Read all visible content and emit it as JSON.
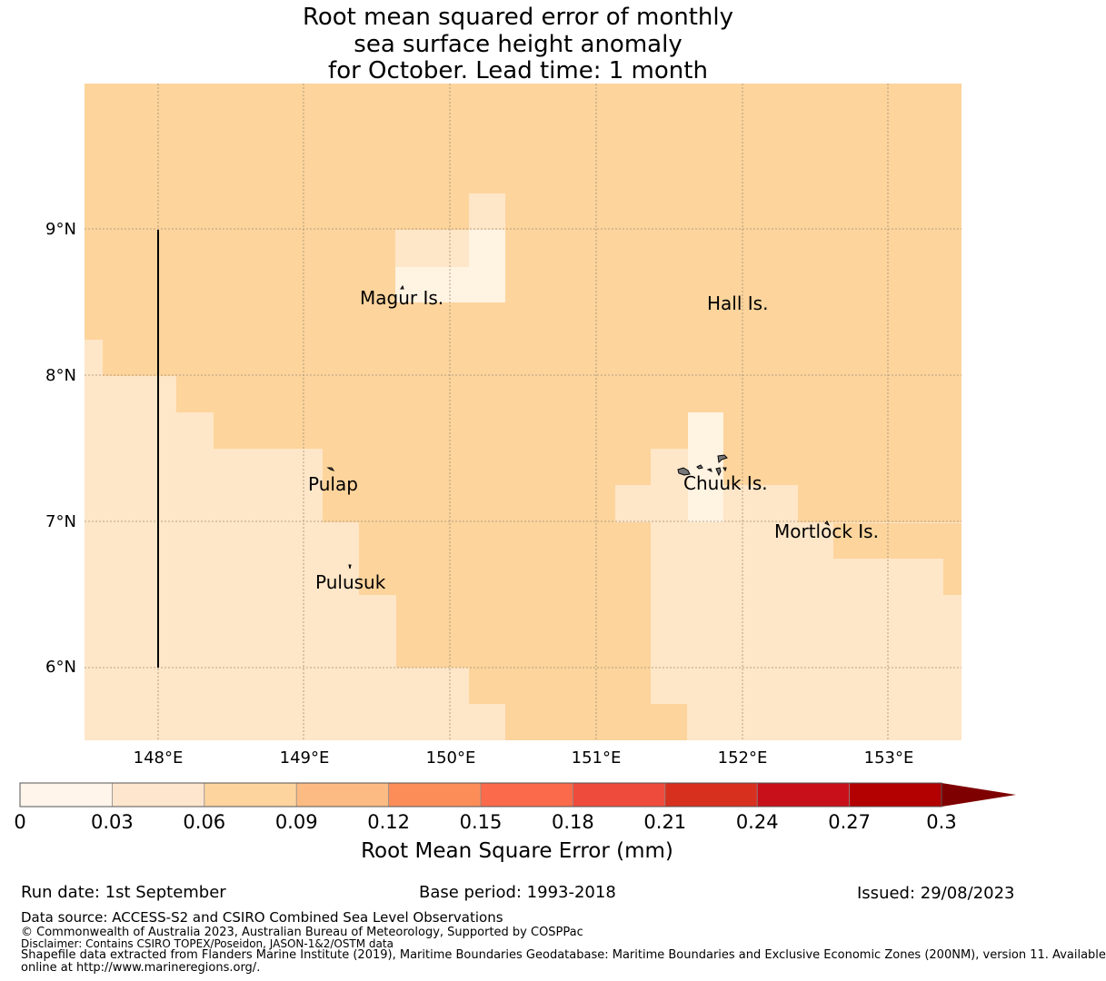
{
  "title": {
    "line1": "Root mean squared error of monthly",
    "line2": "sea surface height anomaly",
    "line3": "for October. Lead time: 1 month"
  },
  "map": {
    "lon_range": [
      147.5,
      153.5
    ],
    "lat_range": [
      5.5,
      10.0
    ],
    "lon_ticks": [
      "148°E",
      "149°E",
      "150°E",
      "151°E",
      "152°E",
      "153°E"
    ],
    "lat_ticks": [
      "9°N",
      "8°N",
      "7°N",
      "6°N"
    ],
    "gridlines": true,
    "places": [
      {
        "name": "Magur Is.",
        "lon": 149.65,
        "lat": 8.5
      },
      {
        "name": "Hall Is.",
        "lon": 152.0,
        "lat": 8.47
      },
      {
        "name": "Pulap",
        "lon": 149.2,
        "lat": 7.22
      },
      {
        "name": "Chuuk Is.",
        "lon": 151.9,
        "lat": 7.25
      },
      {
        "name": "Mortlock Is.",
        "lon": 152.6,
        "lat": 6.92
      },
      {
        "name": "Pulusuk",
        "lon": 149.33,
        "lat": 6.55
      }
    ],
    "colors": {
      "bin_0_003": "#fff5e6",
      "bin_003_006": "#fee6c8",
      "bin_006_009": "#fcd49c",
      "background_grid": "#b9a88b",
      "boundary_line": "#000000"
    }
  },
  "colorbar": {
    "ticks": [
      "0",
      "0.03",
      "0.06",
      "0.09",
      "0.12",
      "0.15",
      "0.18",
      "0.21",
      "0.24",
      "0.27",
      "0.3"
    ],
    "colors": [
      "#fff5eb",
      "#fee6ce",
      "#fdd49e",
      "#fdbb84",
      "#fc8d59",
      "#fb6a4a",
      "#ef4b3c",
      "#d7301f",
      "#c8101a",
      "#b30000",
      "#7f0000"
    ],
    "label": "Root Mean Square Error (mm)"
  },
  "footer": {
    "run_date": "Run date: 1st September",
    "base_period": "Base period: 1993-2018",
    "issued": "Issued: 29/08/2023",
    "data_source": "Data source: ACCESS-S2 and CSIRO Combined Sea Level Observations",
    "copyright": "© Commonwealth of Australia 2023, Australian Bureau of Meteorology, Supported by COSPPac",
    "disclaimer": "Disclaimer: Contains CSIRO TOPEX/Poseidon, JASON-1&2/OSTM data",
    "shapefile_1": "Shapefile data extracted from Flanders Marine Institute (2019), Maritime Boundaries Geodatabase: Maritime Boundaries and Exclusive Economic Zones (200NM), version 11. Available",
    "shapefile_2": "online at http://www.marineregions.org/."
  }
}
